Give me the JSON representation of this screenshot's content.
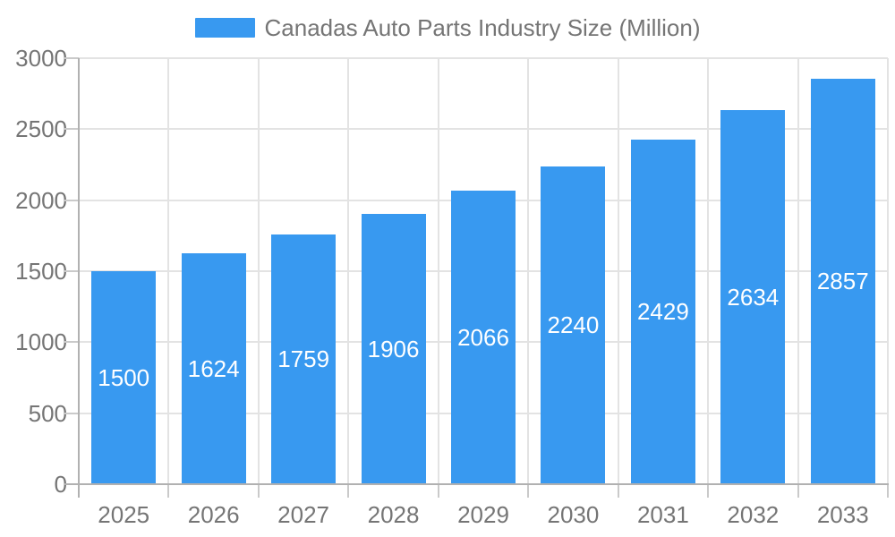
{
  "legend": {
    "label": "Canadas Auto Parts Industry Size (Million)"
  },
  "chart_data": {
    "type": "bar",
    "title": "Canadas Auto Parts Industry Size (Million)",
    "categories": [
      "2025",
      "2026",
      "2027",
      "2028",
      "2029",
      "2030",
      "2031",
      "2032",
      "2033"
    ],
    "values": [
      1500,
      1624,
      1759,
      1906,
      2066,
      2240,
      2429,
      2634,
      2857
    ],
    "xlabel": "",
    "ylabel": "",
    "ylim": [
      0,
      3000
    ],
    "yticks": [
      0,
      500,
      1000,
      1500,
      2000,
      2500,
      3000
    ],
    "grid": true,
    "legend_position": "top-center",
    "value_label_position": "inside-center",
    "colors": {
      "bar": "#3899F0",
      "value_label": "#FFFFFF",
      "axis": "#B1B1B1",
      "gridline": "#E3E3E3",
      "tick": "#CACACA",
      "text": "#757575",
      "background": "#FFFFFF"
    }
  }
}
